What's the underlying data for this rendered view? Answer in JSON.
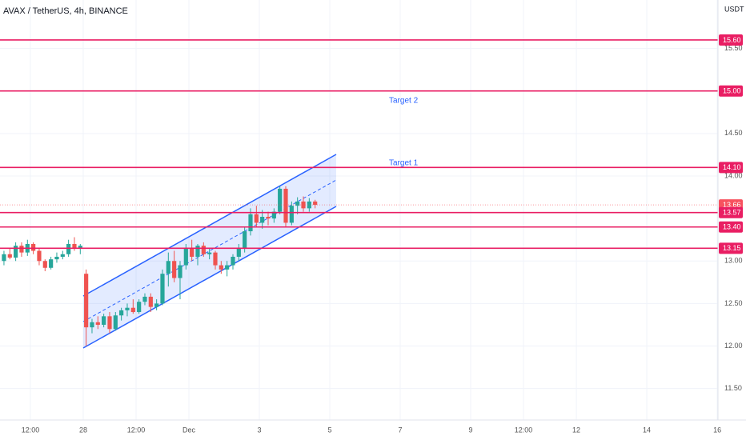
{
  "chart_data": {
    "type": "candlestick",
    "title": "AVAX / TetherUS, 4h, BINANCE",
    "y_unit": "USDT",
    "x": [
      -54,
      -50,
      -46,
      -42,
      -38,
      -34,
      -30,
      -26,
      -22,
      -18,
      -14,
      -10,
      -6,
      -2,
      2,
      6,
      10,
      14,
      18,
      22,
      26,
      30,
      34,
      38,
      42,
      46,
      50,
      54,
      58,
      62,
      66,
      70,
      74,
      78,
      82,
      86,
      90,
      94,
      98,
      102,
      106,
      110,
      114,
      118,
      122,
      126,
      130,
      134,
      138,
      142,
      146,
      150,
      154,
      158
    ],
    "open": [
      13.0,
      13.08,
      13.04,
      13.18,
      13.1,
      13.2,
      13.12,
      13.0,
      12.92,
      13.02,
      13.05,
      13.08,
      13.2,
      13.15,
      12.85,
      12.22,
      12.28,
      12.25,
      12.35,
      12.2,
      12.36,
      12.42,
      12.45,
      12.4,
      12.52,
      12.58,
      12.46,
      12.5,
      12.85,
      13.0,
      12.8,
      12.95,
      13.15,
      13.05,
      13.18,
      13.08,
      13.1,
      12.95,
      12.9,
      12.95,
      13.05,
      13.15,
      13.35,
      13.55,
      13.45,
      13.52,
      13.5,
      13.58,
      13.85,
      13.45,
      13.65,
      13.7,
      13.62,
      13.7
    ],
    "high": [
      13.12,
      13.15,
      13.22,
      13.22,
      13.25,
      13.22,
      13.15,
      13.02,
      13.05,
      13.1,
      13.12,
      13.25,
      13.28,
      13.2,
      12.9,
      12.32,
      12.35,
      12.38,
      12.4,
      12.4,
      12.45,
      12.5,
      12.55,
      12.55,
      12.62,
      12.62,
      12.55,
      12.9,
      13.1,
      13.12,
      13.0,
      13.2,
      13.25,
      13.2,
      13.22,
      13.15,
      13.12,
      13.0,
      13.0,
      13.08,
      13.2,
      13.4,
      13.62,
      13.65,
      13.6,
      13.58,
      13.62,
      13.88,
      13.88,
      13.7,
      13.75,
      13.76,
      13.74,
      13.72
    ],
    "low": [
      12.95,
      13.02,
      13.0,
      13.05,
      13.06,
      13.08,
      12.95,
      12.88,
      12.9,
      12.98,
      13.02,
      13.05,
      13.12,
      13.08,
      12.0,
      12.15,
      12.2,
      12.22,
      12.15,
      12.18,
      12.3,
      12.35,
      12.38,
      12.38,
      12.48,
      12.4,
      12.42,
      12.48,
      12.7,
      12.75,
      12.55,
      12.9,
      13.0,
      12.95,
      13.05,
      13.02,
      12.9,
      12.85,
      12.82,
      12.9,
      13.0,
      13.1,
      13.3,
      13.4,
      13.38,
      13.42,
      13.45,
      13.55,
      13.4,
      13.42,
      13.55,
      13.58,
      13.58,
      13.62
    ],
    "close": [
      13.08,
      13.04,
      13.18,
      13.1,
      13.2,
      13.12,
      13.0,
      12.92,
      13.02,
      13.05,
      13.08,
      13.2,
      13.15,
      13.18,
      12.22,
      12.28,
      12.25,
      12.35,
      12.2,
      12.36,
      12.42,
      12.45,
      12.4,
      12.52,
      12.58,
      12.46,
      12.5,
      12.85,
      13.0,
      12.8,
      12.95,
      13.15,
      13.05,
      13.18,
      13.08,
      13.1,
      12.95,
      12.9,
      12.95,
      13.05,
      13.15,
      13.35,
      13.55,
      13.45,
      13.52,
      13.5,
      13.58,
      13.85,
      13.45,
      13.65,
      13.7,
      13.62,
      13.7,
      13.66
    ],
    "up_color": "#26a69a",
    "down_color": "#ef5350",
    "xlim": [
      -56.7,
      432.5
    ],
    "xticks": [
      {
        "value": -36,
        "label": "12:00"
      },
      {
        "value": 0,
        "label": "28"
      },
      {
        "value": 36,
        "label": "12:00"
      },
      {
        "value": 72,
        "label": "Dec"
      },
      {
        "value": 120,
        "label": "3"
      },
      {
        "value": 168,
        "label": "5"
      },
      {
        "value": 216,
        "label": "7"
      },
      {
        "value": 264,
        "label": "9"
      },
      {
        "value": 300,
        "label": "12:00"
      },
      {
        "value": 336,
        "label": "12"
      },
      {
        "value": 384,
        "label": "14"
      },
      {
        "value": 432,
        "label": "16"
      }
    ],
    "ylim": [
      11.13,
      16.07
    ],
    "yticks": [
      {
        "value": 11.5,
        "label": "11.50"
      },
      {
        "value": 12,
        "label": "12.00"
      },
      {
        "value": 12.5,
        "label": "12.50"
      },
      {
        "value": 13,
        "label": "13.00"
      },
      {
        "value": 14,
        "label": "14.00"
      },
      {
        "value": 14.5,
        "label": "14.50"
      },
      {
        "value": 15.5,
        "label": "15.50"
      }
    ],
    "grid": true,
    "levels": [
      {
        "value": 15.6,
        "label": "15.60"
      },
      {
        "value": 15,
        "label": "15.00"
      },
      {
        "value": 14.1,
        "label": "14.10"
      },
      {
        "value": 13.57,
        "label": "13.57"
      },
      {
        "value": 13.4,
        "label": "13.40"
      },
      {
        "value": 13.15,
        "label": "13.15"
      }
    ],
    "level_color": "#e91e63",
    "last_price": {
      "value": 13.66,
      "label": "13.66"
    },
    "last_price_color": "#f7525f",
    "annotations": [
      "Target 2",
      "Target 1"
    ]
  }
}
